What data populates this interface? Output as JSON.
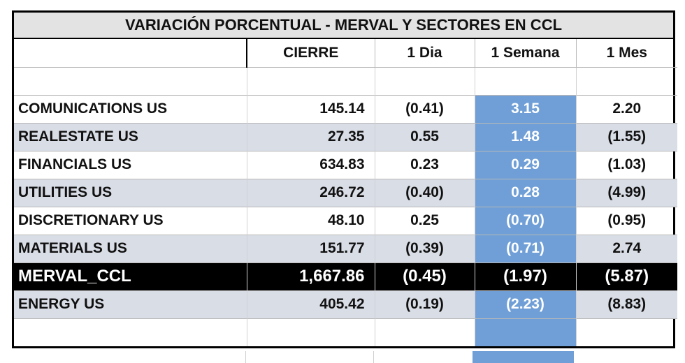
{
  "title": "VARIACIÓN PORCENTUAL  - MERVAL Y SECTORES EN CCL",
  "columns": [
    "",
    "CIERRE",
    "1 Dia",
    "1 Semana",
    "1 Mes"
  ],
  "rows": [
    {
      "name": "COMUNICATIONS US",
      "cierre": "145.14",
      "dia": "(0.41)",
      "semana": "3.15",
      "mes": "2.20"
    },
    {
      "name": "REALESTATE US",
      "cierre": "27.35",
      "dia": "0.55",
      "semana": "1.48",
      "mes": "(1.55)"
    },
    {
      "name": "FINANCIALS US",
      "cierre": "634.83",
      "dia": "0.23",
      "semana": "0.29",
      "mes": "(1.03)"
    },
    {
      "name": "UTILITIES US",
      "cierre": "246.72",
      "dia": "(0.40)",
      "semana": "0.28",
      "mes": "(4.99)"
    },
    {
      "name": "DISCRETIONARY US",
      "cierre": "48.10",
      "dia": "0.25",
      "semana": "(0.70)",
      "mes": "(0.95)"
    },
    {
      "name": "MATERIALS US",
      "cierre": "151.77",
      "dia": "(0.39)",
      "semana": "(0.71)",
      "mes": "2.74"
    },
    {
      "name": "MERVAL_CCL",
      "cierre": "1,667.86",
      "dia": "(0.45)",
      "semana": "(1.97)",
      "mes": "(5.87)"
    },
    {
      "name": "ENERGY US",
      "cierre": "405.42",
      "dia": "(0.19)",
      "semana": "(2.23)",
      "mes": "(8.83)"
    }
  ],
  "colors": {
    "highlight_column": "#6f9fd6",
    "alt_row": "#d9dde6",
    "merval_row": "#000000"
  }
}
